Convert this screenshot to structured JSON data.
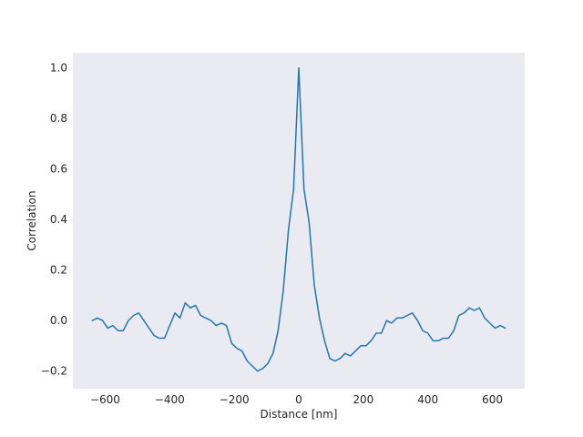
{
  "chart_data": {
    "type": "line",
    "title": "",
    "xlabel": "Distance [nm]",
    "ylabel": "Correlation",
    "xlim": [
      -700,
      700
    ],
    "ylim": [
      -0.27,
      1.06
    ],
    "xticks": [
      -600,
      -400,
      -200,
      0,
      200,
      400,
      600
    ],
    "yticks": [
      -0.2,
      0.0,
      0.2,
      0.4,
      0.6,
      0.8,
      1.0
    ],
    "xtick_labels": [
      "−600",
      "−400",
      "−200",
      "0",
      "200",
      "400",
      "600"
    ],
    "ytick_labels": [
      "−0.2",
      "0.0",
      "0.2",
      "0.4",
      "0.6",
      "0.8",
      "1.0"
    ],
    "grid": false,
    "background_color": "#eaeaf2",
    "series": [
      {
        "color": "#1f77b4",
        "x": [
          -640,
          -624,
          -608,
          -592,
          -576,
          -560,
          -544,
          -528,
          -512,
          -496,
          -480,
          -464,
          -448,
          -432,
          -416,
          -400,
          -384,
          -368,
          -352,
          -336,
          -320,
          -304,
          -288,
          -272,
          -256,
          -240,
          -224,
          -208,
          -192,
          -176,
          -160,
          -144,
          -128,
          -112,
          -96,
          -80,
          -64,
          -48,
          -32,
          -16,
          0,
          16,
          32,
          48,
          64,
          80,
          96,
          112,
          128,
          144,
          160,
          176,
          192,
          208,
          224,
          240,
          256,
          272,
          288,
          304,
          320,
          336,
          352,
          368,
          384,
          400,
          416,
          432,
          448,
          464,
          480,
          496,
          512,
          528,
          544,
          560,
          576,
          592,
          608,
          624,
          640
        ],
        "y": [
          0.0,
          0.01,
          0.0,
          -0.03,
          -0.02,
          -0.04,
          -0.04,
          0.0,
          0.02,
          0.03,
          0.0,
          -0.03,
          -0.06,
          -0.07,
          -0.07,
          -0.02,
          0.03,
          0.01,
          0.07,
          0.05,
          0.06,
          0.02,
          0.01,
          0.0,
          -0.02,
          -0.01,
          -0.02,
          -0.09,
          -0.11,
          -0.12,
          -0.16,
          -0.18,
          -0.2,
          -0.19,
          -0.17,
          -0.13,
          -0.04,
          0.12,
          0.36,
          0.52,
          1.0,
          0.52,
          0.39,
          0.14,
          0.01,
          -0.08,
          -0.15,
          -0.16,
          -0.15,
          -0.13,
          -0.14,
          -0.12,
          -0.1,
          -0.1,
          -0.08,
          -0.05,
          -0.05,
          0.0,
          -0.01,
          0.01,
          0.01,
          0.02,
          0.03,
          0.0,
          -0.04,
          -0.05,
          -0.08,
          -0.08,
          -0.07,
          -0.07,
          -0.04,
          0.02,
          0.03,
          0.05,
          0.04,
          0.05,
          0.01,
          -0.01,
          -0.03,
          -0.02,
          -0.03
        ]
      }
    ]
  }
}
